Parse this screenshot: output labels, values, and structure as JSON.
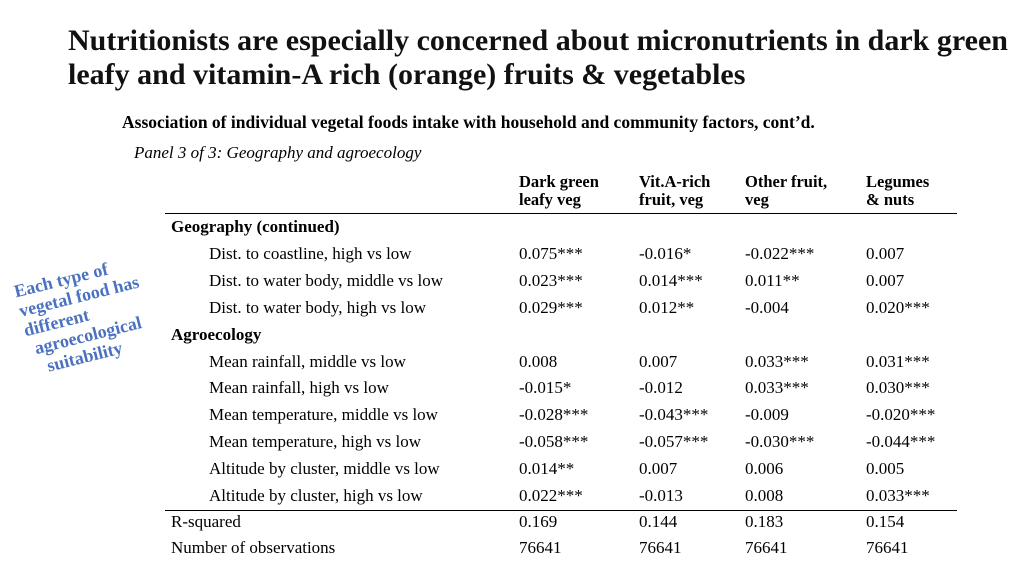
{
  "title": "Nutritionists are especially concerned about micronutrients in dark green leafy and vitamin-A rich (orange) fruits & vegetables",
  "subtitle": "Association of individual vegetal foods intake with household and community factors, cont’d.",
  "panel": "Panel 3 of 3: Geography and agroecology",
  "columns": [
    {
      "line1": "Dark green",
      "line2": "leafy veg"
    },
    {
      "line1": "Vit.A-rich",
      "line2": "fruit, veg"
    },
    {
      "line1": "Other fruit,",
      "line2": "veg"
    },
    {
      "line1": "Legumes",
      "line2": "& nuts"
    }
  ],
  "sections": {
    "geography": "Geography (continued)",
    "agroecology": "Agroecology"
  },
  "rows": [
    {
      "label": "Dist. to coastline, high vs low",
      "values": [
        "0.075***",
        "-0.016*",
        "-0.022***",
        "0.007"
      ]
    },
    {
      "label": "Dist. to water body, middle vs low",
      "values": [
        "0.023***",
        "0.014***",
        "0.011**",
        "0.007"
      ]
    },
    {
      "label": "Dist. to water body, high vs low",
      "values": [
        "0.029***",
        "0.012**",
        "-0.004",
        "0.020***"
      ]
    },
    {
      "label": "Mean rainfall, middle vs low",
      "values": [
        "0.008",
        "0.007",
        "0.033***",
        "0.031***"
      ]
    },
    {
      "label": "Mean rainfall, high vs low",
      "values": [
        "-0.015*",
        "-0.012",
        "0.033***",
        "0.030***"
      ]
    },
    {
      "label": "Mean temperature, middle vs low",
      "values": [
        "-0.028***",
        "-0.043***",
        "-0.009",
        "-0.020***"
      ]
    },
    {
      "label": "Mean temperature, high vs low",
      "values": [
        "-0.058***",
        "-0.057***",
        "-0.030***",
        "-0.044***"
      ]
    },
    {
      "label": "Altitude by cluster, middle vs low",
      "values": [
        "0.014**",
        "0.007",
        "0.006",
        "0.005"
      ]
    },
    {
      "label": "Altitude by cluster, high vs low",
      "values": [
        "0.022***",
        "-0.013",
        "0.008",
        "0.033***"
      ]
    }
  ],
  "footer_rows": [
    {
      "label": "R-squared",
      "values": [
        "0.169",
        "0.144",
        "0.183",
        "0.154"
      ]
    },
    {
      "label": "Number of observations",
      "values": [
        "76641",
        "76641",
        "76641",
        "76641"
      ]
    }
  ],
  "callout_lines": [
    "Each type of",
    "vegetal food has",
    "different",
    "agroecological",
    "suitability"
  ],
  "colors": {
    "callout": "#4a72c0",
    "text": "#000000"
  }
}
